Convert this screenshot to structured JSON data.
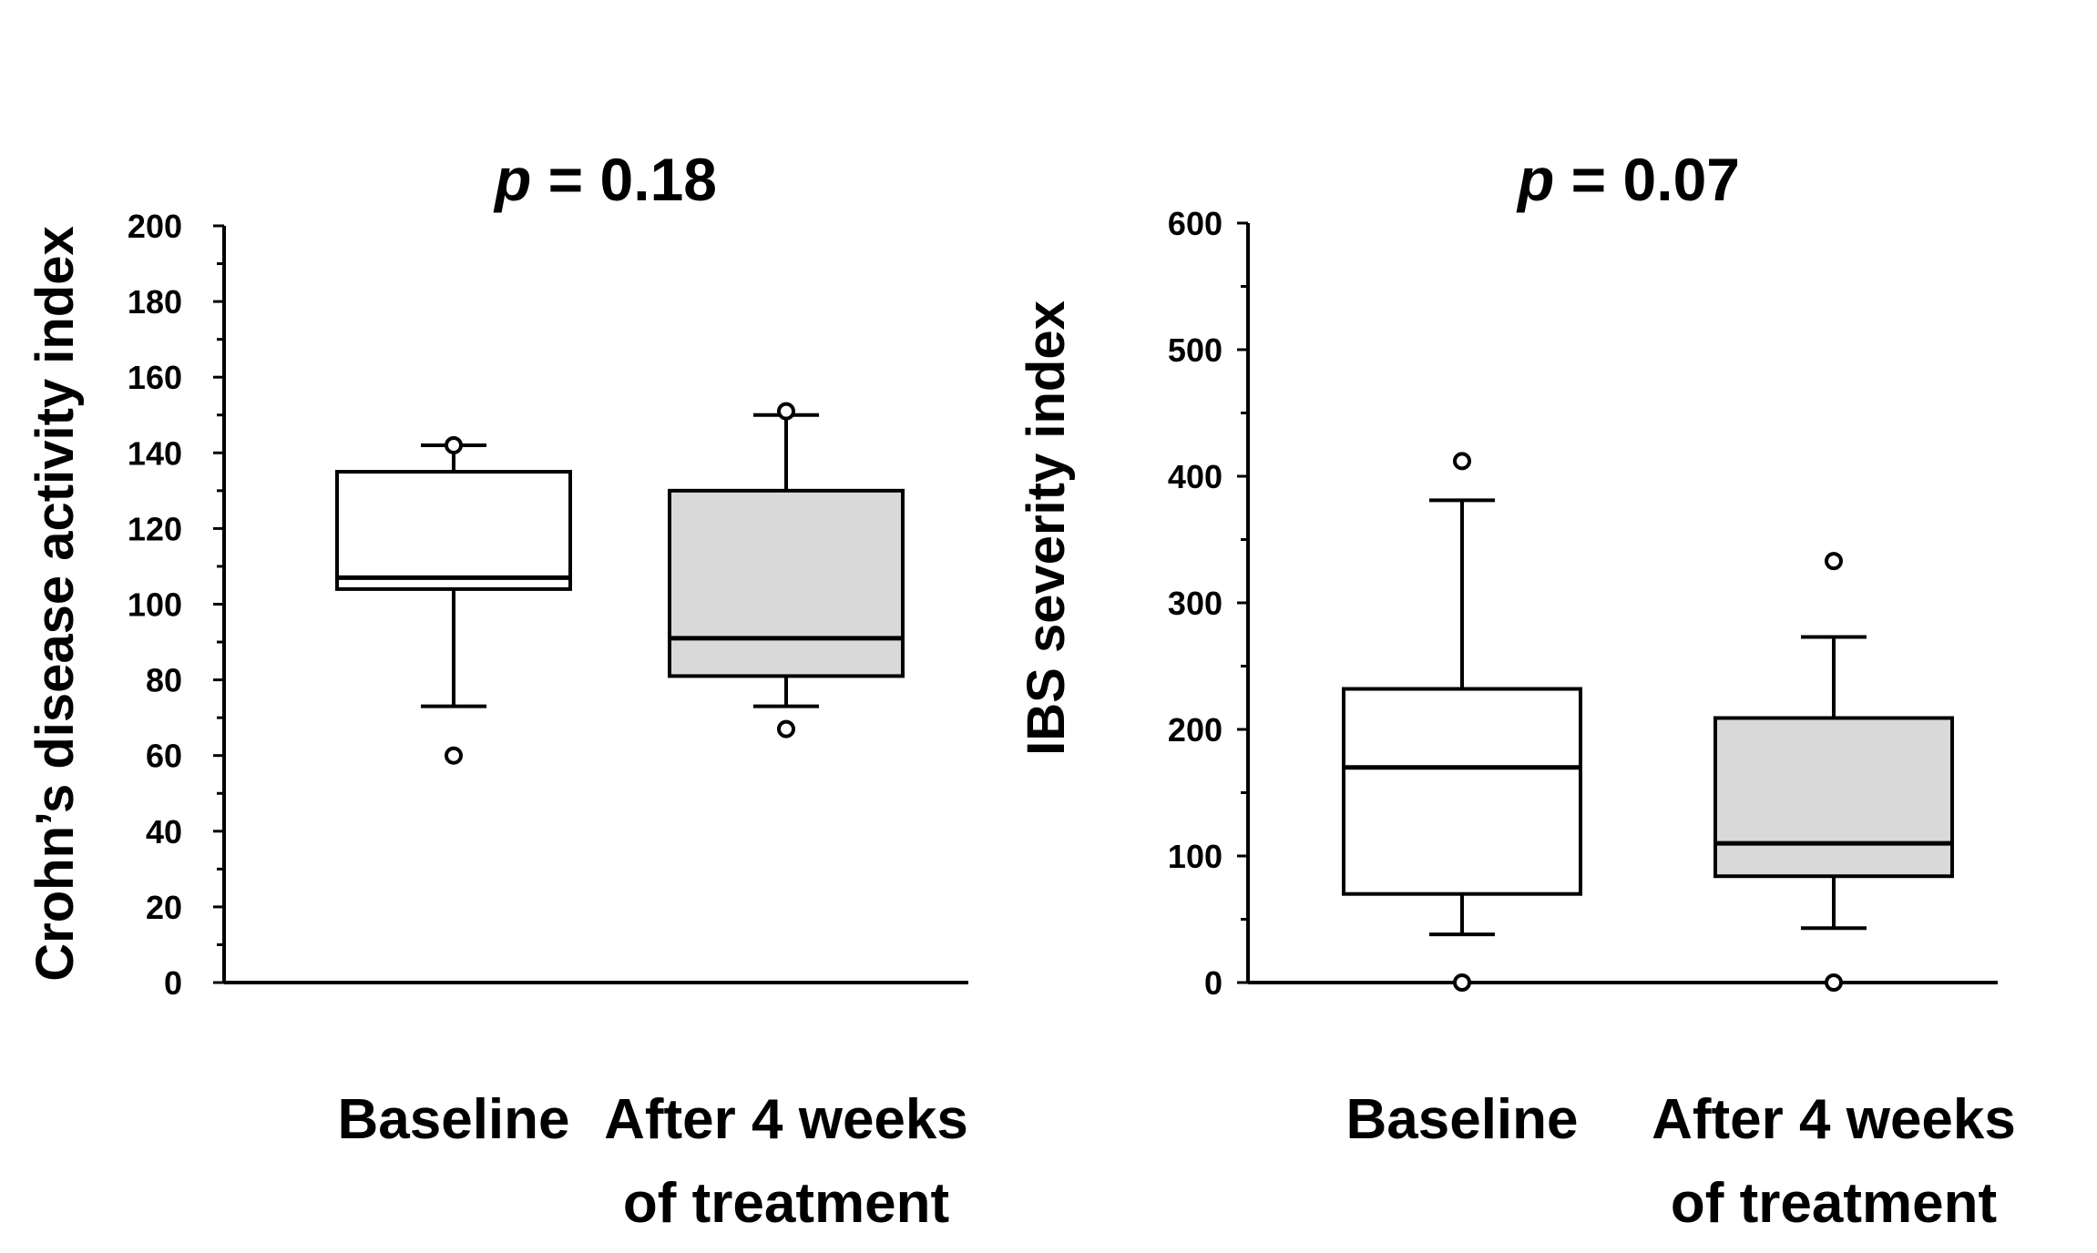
{
  "chart_data": [
    {
      "type": "box",
      "title_prefix": "p",
      "title_rest": " = 0.18",
      "ylabel": "Crohn’s disease activity index",
      "ylim": [
        0,
        200
      ],
      "yticks": [
        "0",
        "20",
        "40",
        "60",
        "80",
        "100",
        "120",
        "140",
        "160",
        "180",
        "200"
      ],
      "categories": [
        {
          "label_lines": [
            "Baseline"
          ]
        },
        {
          "label_lines": [
            "After 4 weeks",
            "of treatment"
          ]
        }
      ],
      "boxes": [
        {
          "name": "Baseline",
          "whisker_low": 73,
          "q1": 104,
          "median": 107,
          "q3": 135,
          "whisker_high": 142,
          "outliers": [
            60,
            142
          ],
          "fill": "#ffffff"
        },
        {
          "name": "After 4 weeks of treatment",
          "whisker_low": 73,
          "q1": 81,
          "median": 91,
          "q3": 130,
          "whisker_high": 150,
          "outliers": [
            67,
            151
          ],
          "fill": "#d9d9d9"
        }
      ]
    },
    {
      "type": "box",
      "title_prefix": "p",
      "title_rest": " = 0.07",
      "ylabel": "IBS severity index",
      "ylim": [
        0,
        600
      ],
      "yticks": [
        "0",
        "100",
        "200",
        "300",
        "400",
        "500",
        "600"
      ],
      "categories": [
        {
          "label_lines": [
            "Baseline"
          ]
        },
        {
          "label_lines": [
            "After 4 weeks",
            "of treatment"
          ]
        }
      ],
      "boxes": [
        {
          "name": "Baseline",
          "whisker_low": 38,
          "q1": 70,
          "median": 170,
          "q3": 232,
          "whisker_high": 381,
          "outliers": [
            0,
            412
          ],
          "fill": "#ffffff"
        },
        {
          "name": "After 4 weeks of treatment",
          "whisker_low": 43,
          "q1": 84,
          "median": 110,
          "q3": 209,
          "whisker_high": 273,
          "outliers": [
            0,
            333
          ],
          "fill": "#d9d9d9"
        }
      ]
    }
  ]
}
